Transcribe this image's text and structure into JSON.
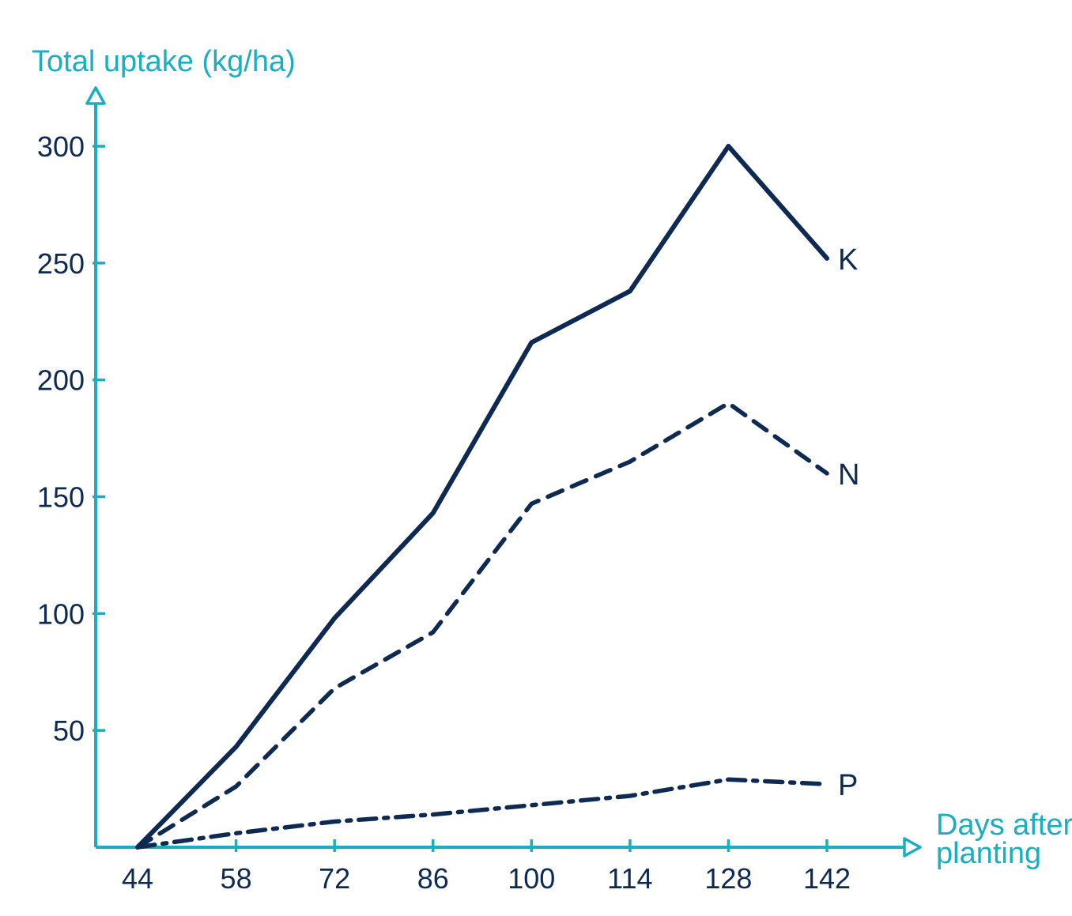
{
  "chart_data": {
    "type": "line",
    "ylabel": "Total uptake (kg/ha)",
    "xlabel_lines": [
      "Days after",
      "planting"
    ],
    "x": [
      44,
      58,
      72,
      86,
      100,
      114,
      128,
      142
    ],
    "xlim": [
      44,
      142
    ],
    "ylim": [
      0,
      300
    ],
    "yticks": [
      50,
      100,
      150,
      200,
      250,
      300
    ],
    "grid": false,
    "series": [
      {
        "name": "K",
        "style": "solid",
        "values": [
          0,
          43,
          98,
          143,
          216,
          238,
          300,
          252
        ]
      },
      {
        "name": "N",
        "style": "dashed",
        "values": [
          0,
          26,
          68,
          92,
          147,
          165,
          190,
          160
        ]
      },
      {
        "name": "P",
        "style": "dashdot",
        "values": [
          0,
          6,
          11,
          14,
          18,
          22,
          29,
          27
        ]
      }
    ],
    "colors": {
      "axis": "#1aaec0",
      "series": "#0f2a52",
      "tick_text": "#0f2a52"
    }
  }
}
